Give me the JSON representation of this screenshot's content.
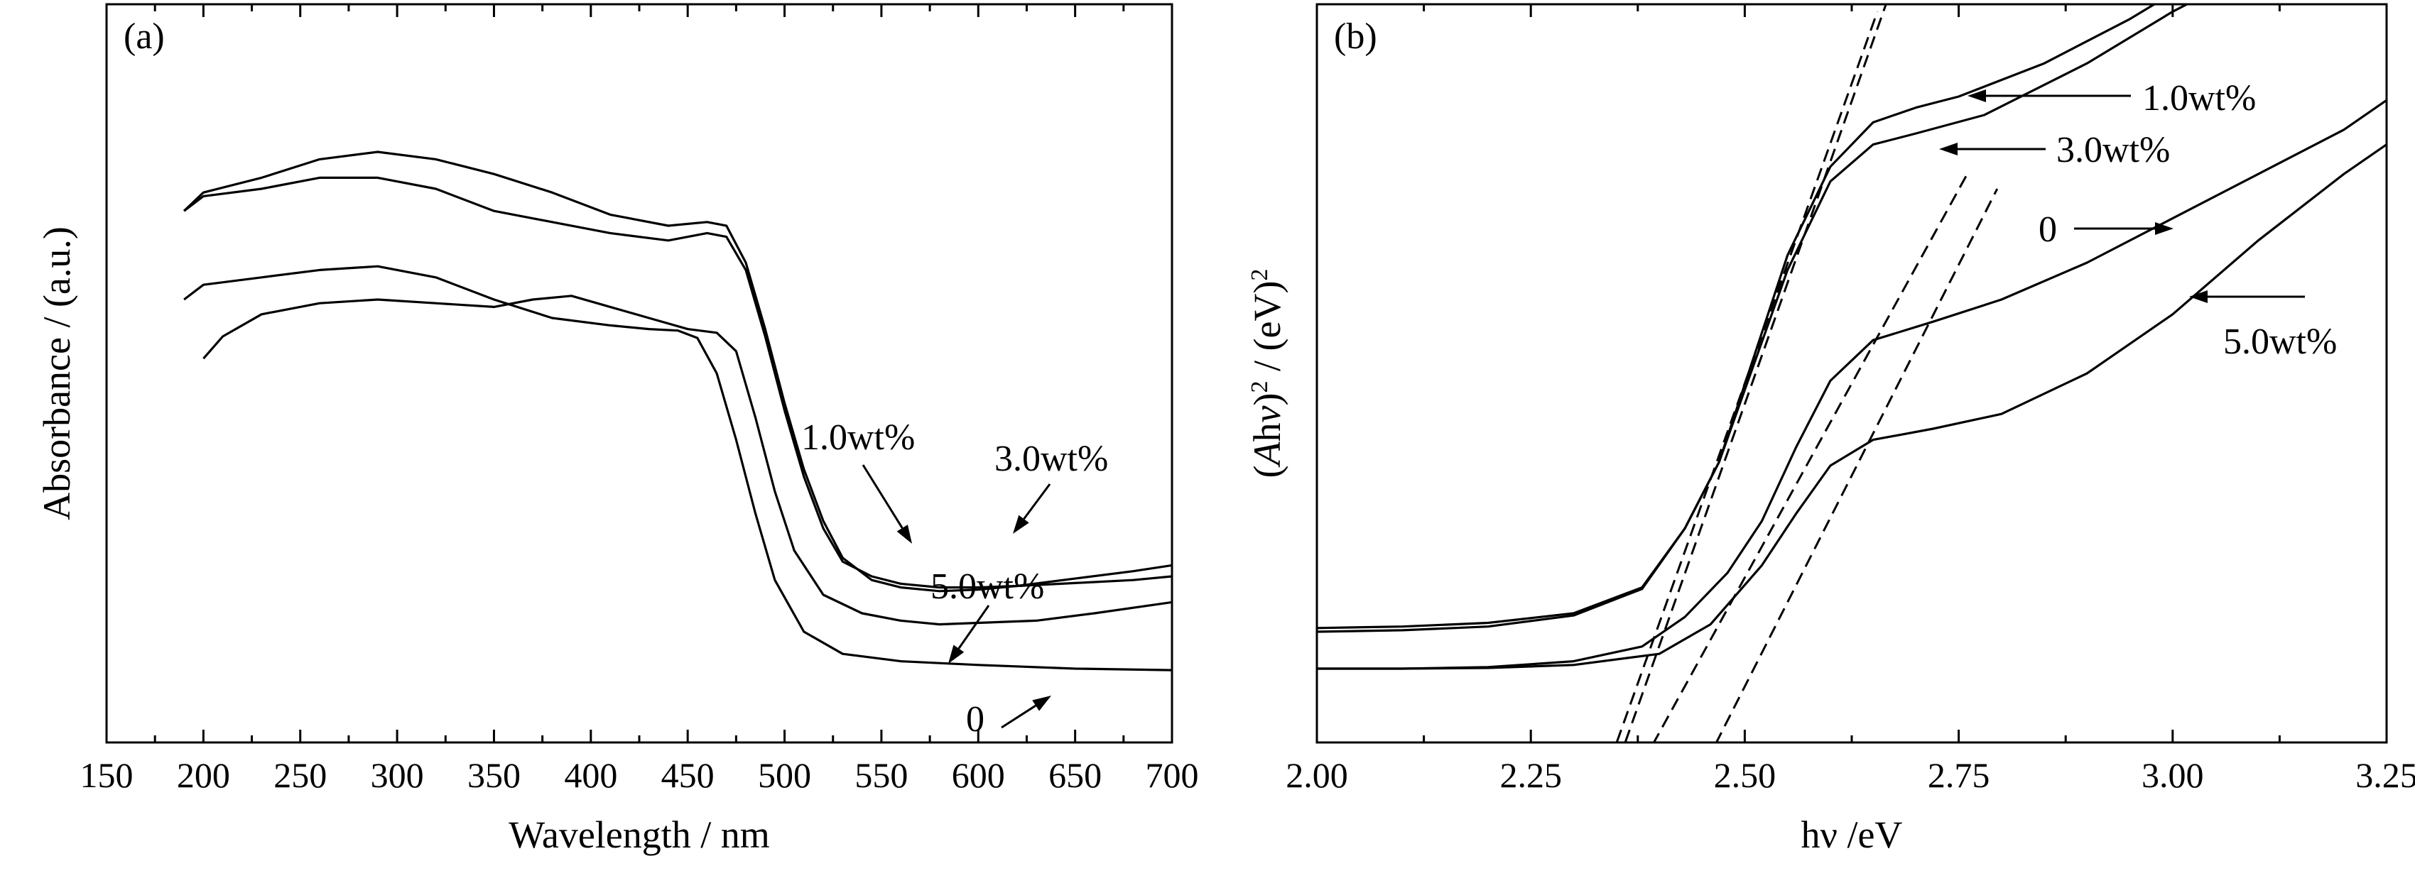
{
  "chart_data": [
    {
      "panel": "(a)",
      "type": "line",
      "xlabel": "Wavelength / nm",
      "ylabel": "Absorbance / (a.u.)",
      "xlim": [
        150,
        700
      ],
      "ylim": [
        0,
        1
      ],
      "x_ticks": [
        150,
        200,
        250,
        300,
        350,
        400,
        450,
        500,
        550,
        600,
        650,
        700
      ],
      "y_tick_labels": false,
      "grid": false,
      "series": [
        {
          "name": "1.0wt%",
          "points": [
            [
              190,
              0.72
            ],
            [
              200,
              0.745
            ],
            [
              230,
              0.765
            ],
            [
              260,
              0.79
            ],
            [
              290,
              0.8
            ],
            [
              320,
              0.79
            ],
            [
              350,
              0.77
            ],
            [
              380,
              0.745
            ],
            [
              410,
              0.715
            ],
            [
              440,
              0.7
            ],
            [
              460,
              0.705
            ],
            [
              470,
              0.7
            ],
            [
              480,
              0.65
            ],
            [
              490,
              0.56
            ],
            [
              500,
              0.46
            ],
            [
              510,
              0.37
            ],
            [
              520,
              0.3
            ],
            [
              530,
              0.25
            ],
            [
              545,
              0.22
            ],
            [
              560,
              0.21
            ],
            [
              580,
              0.205
            ],
            [
              600,
              0.207
            ],
            [
              620,
              0.212
            ],
            [
              650,
              0.222
            ],
            [
              680,
              0.232
            ],
            [
              700,
              0.24
            ]
          ]
        },
        {
          "name": "3.0wt%",
          "points": [
            [
              190,
              0.72
            ],
            [
              200,
              0.74
            ],
            [
              230,
              0.75
            ],
            [
              260,
              0.765
            ],
            [
              290,
              0.765
            ],
            [
              320,
              0.75
            ],
            [
              350,
              0.72
            ],
            [
              380,
              0.705
            ],
            [
              410,
              0.69
            ],
            [
              440,
              0.68
            ],
            [
              460,
              0.69
            ],
            [
              470,
              0.685
            ],
            [
              480,
              0.64
            ],
            [
              490,
              0.55
            ],
            [
              500,
              0.45
            ],
            [
              510,
              0.36
            ],
            [
              520,
              0.29
            ],
            [
              530,
              0.245
            ],
            [
              545,
              0.225
            ],
            [
              560,
              0.215
            ],
            [
              580,
              0.21
            ],
            [
              600,
              0.21
            ],
            [
              620,
              0.212
            ],
            [
              650,
              0.216
            ],
            [
              680,
              0.22
            ],
            [
              700,
              0.225
            ]
          ]
        },
        {
          "name": "0",
          "points": [
            [
              190,
              0.6
            ],
            [
              200,
              0.62
            ],
            [
              230,
              0.63
            ],
            [
              260,
              0.64
            ],
            [
              290,
              0.645
            ],
            [
              320,
              0.63
            ],
            [
              350,
              0.6
            ],
            [
              380,
              0.575
            ],
            [
              410,
              0.565
            ],
            [
              430,
              0.56
            ],
            [
              445,
              0.558
            ],
            [
              455,
              0.548
            ],
            [
              465,
              0.5
            ],
            [
              475,
              0.41
            ],
            [
              485,
              0.31
            ],
            [
              495,
              0.22
            ],
            [
              510,
              0.15
            ],
            [
              530,
              0.12
            ],
            [
              560,
              0.11
            ],
            [
              600,
              0.105
            ],
            [
              650,
              0.1
            ],
            [
              700,
              0.098
            ]
          ]
        },
        {
          "name": "5.0wt%",
          "points": [
            [
              200,
              0.52
            ],
            [
              210,
              0.55
            ],
            [
              230,
              0.58
            ],
            [
              260,
              0.595
            ],
            [
              290,
              0.6
            ],
            [
              320,
              0.595
            ],
            [
              350,
              0.59
            ],
            [
              370,
              0.6
            ],
            [
              390,
              0.605
            ],
            [
              410,
              0.59
            ],
            [
              430,
              0.575
            ],
            [
              450,
              0.56
            ],
            [
              465,
              0.555
            ],
            [
              475,
              0.53
            ],
            [
              485,
              0.44
            ],
            [
              495,
              0.34
            ],
            [
              505,
              0.26
            ],
            [
              520,
              0.2
            ],
            [
              540,
              0.175
            ],
            [
              560,
              0.165
            ],
            [
              580,
              0.16
            ],
            [
              600,
              0.162
            ],
            [
              630,
              0.165
            ],
            [
              660,
              0.175
            ],
            [
              700,
              0.19
            ]
          ]
        }
      ],
      "annotations": [
        "1.0wt%",
        "3.0wt%",
        "5.0wt%",
        "0"
      ]
    },
    {
      "panel": "(b)",
      "type": "line",
      "xlabel": "hν /eV",
      "ylabel": "(Ahν)2 / (eV)2",
      "xlim": [
        2.0,
        3.25
      ],
      "ylim": [
        0,
        1
      ],
      "x_ticks": [
        2.0,
        2.25,
        2.5,
        2.75,
        3.0,
        3.25
      ],
      "x_tick_labels": [
        "2.00",
        "2.25",
        "2.50",
        "2.75",
        "3.00",
        "3.25"
      ],
      "y_tick_labels": false,
      "grid": false,
      "series": [
        {
          "name": "1.0wt%",
          "points": [
            [
              2.0,
              0.155
            ],
            [
              2.1,
              0.157
            ],
            [
              2.2,
              0.162
            ],
            [
              2.3,
              0.175
            ],
            [
              2.38,
              0.21
            ],
            [
              2.43,
              0.29
            ],
            [
              2.47,
              0.38
            ],
            [
              2.51,
              0.52
            ],
            [
              2.55,
              0.66
            ],
            [
              2.6,
              0.78
            ],
            [
              2.65,
              0.84
            ],
            [
              2.7,
              0.86
            ],
            [
              2.75,
              0.875
            ],
            [
              2.85,
              0.92
            ],
            [
              2.95,
              0.98
            ],
            [
              3.05,
              1.05
            ]
          ]
        },
        {
          "name": "3.0wt%",
          "points": [
            [
              2.0,
              0.15
            ],
            [
              2.1,
              0.152
            ],
            [
              2.2,
              0.157
            ],
            [
              2.3,
              0.172
            ],
            [
              2.38,
              0.208
            ],
            [
              2.43,
              0.29
            ],
            [
              2.47,
              0.38
            ],
            [
              2.51,
              0.51
            ],
            [
              2.55,
              0.64
            ],
            [
              2.6,
              0.76
            ],
            [
              2.65,
              0.81
            ],
            [
              2.7,
              0.825
            ],
            [
              2.78,
              0.85
            ],
            [
              2.9,
              0.92
            ],
            [
              3.0,
              0.99
            ],
            [
              3.1,
              1.05
            ]
          ]
        },
        {
          "name": "0",
          "points": [
            [
              2.0,
              0.1
            ],
            [
              2.1,
              0.1
            ],
            [
              2.2,
              0.102
            ],
            [
              2.3,
              0.11
            ],
            [
              2.38,
              0.13
            ],
            [
              2.43,
              0.17
            ],
            [
              2.48,
              0.23
            ],
            [
              2.52,
              0.3
            ],
            [
              2.56,
              0.4
            ],
            [
              2.6,
              0.49
            ],
            [
              2.65,
              0.545
            ],
            [
              2.72,
              0.57
            ],
            [
              2.8,
              0.6
            ],
            [
              2.9,
              0.65
            ],
            [
              3.0,
              0.71
            ],
            [
              3.1,
              0.77
            ],
            [
              3.2,
              0.83
            ],
            [
              3.25,
              0.87
            ]
          ]
        },
        {
          "name": "5.0wt%",
          "points": [
            [
              2.0,
              0.1
            ],
            [
              2.1,
              0.1
            ],
            [
              2.2,
              0.101
            ],
            [
              2.3,
              0.105
            ],
            [
              2.4,
              0.12
            ],
            [
              2.46,
              0.16
            ],
            [
              2.52,
              0.24
            ],
            [
              2.56,
              0.31
            ],
            [
              2.6,
              0.375
            ],
            [
              2.65,
              0.41
            ],
            [
              2.72,
              0.425
            ],
            [
              2.8,
              0.445
            ],
            [
              2.9,
              0.5
            ],
            [
              3.0,
              0.58
            ],
            [
              3.1,
              0.68
            ],
            [
              3.2,
              0.77
            ],
            [
              3.25,
              0.81
            ]
          ]
        }
      ],
      "fit_lines": [
        {
          "points": [
            [
              2.345,
              -0.05
            ],
            [
              2.665,
              1.0
            ]
          ]
        },
        {
          "points": [
            [
              2.335,
              -0.05
            ],
            [
              2.655,
              0.99
            ]
          ]
        },
        {
          "points": [
            [
              2.37,
              -0.05
            ],
            [
              2.76,
              0.77
            ]
          ]
        },
        {
          "points": [
            [
              2.445,
              -0.05
            ],
            [
              2.795,
              0.75
            ]
          ]
        }
      ],
      "annotations": [
        "1.0wt%",
        "3.0wt%",
        "0",
        "5.0wt%"
      ]
    }
  ]
}
